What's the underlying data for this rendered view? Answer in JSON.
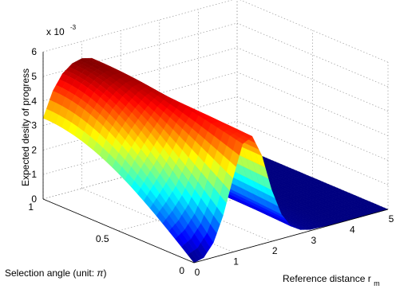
{
  "chart_data": {
    "type": "surface",
    "title": "",
    "zlabel": "Expected desity of progress",
    "z_scale_exponent_base": "x 10",
    "z_scale_exponent": "-3",
    "xlabel_main": "Reference distance r",
    "xlabel_subscript": "m",
    "ylabel_main": "Selection angle (unit:  ",
    "ylabel_symbol": "π",
    "ylabel_close": ")",
    "x_range": [
      0,
      5
    ],
    "y_range": [
      0,
      1
    ],
    "z_range": [
      0,
      6
    ],
    "x_ticks": [
      "0",
      "1",
      "2",
      "3",
      "4",
      "5"
    ],
    "y_ticks": [
      "0",
      "0.5",
      "1"
    ],
    "z_ticks": [
      "0",
      "1",
      "2",
      "3",
      "4",
      "5",
      "6"
    ],
    "z_units_multiplier": 0.001,
    "grid": true,
    "colormap": "jet",
    "surface_profile": {
      "description_values": "z(x) shared across selection angle; approximate readings in units of 1e-3",
      "x": [
        0.0,
        0.25,
        0.5,
        0.75,
        1.0,
        1.25,
        1.5,
        1.75,
        2.0,
        2.25,
        2.5,
        2.75,
        3.0,
        3.5,
        4.0,
        5.0
      ],
      "z_at_y1": [
        3.3,
        4.3,
        4.9,
        5.2,
        5.3,
        5.2,
        4.7,
        3.7,
        2.4,
        1.3,
        0.6,
        0.25,
        0.1,
        0.02,
        0.0,
        0.0
      ],
      "z_at_y0": [
        0.0,
        0.1,
        0.6,
        1.6,
        3.0,
        4.3,
        4.5,
        3.6,
        2.1,
        1.0,
        0.4,
        0.15,
        0.05,
        0.01,
        0.0,
        0.0
      ]
    }
  }
}
